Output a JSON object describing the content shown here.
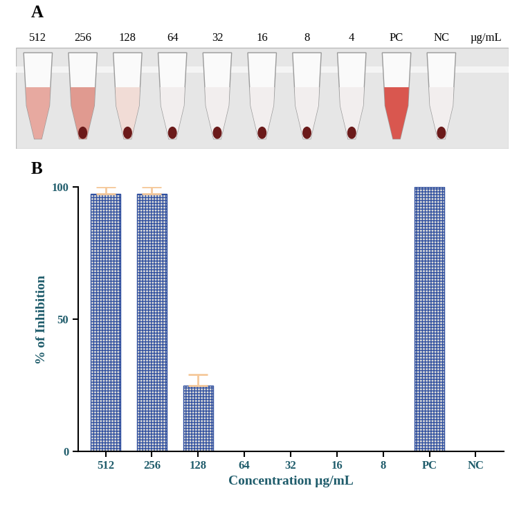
{
  "photo": {
    "panel_label": "A",
    "tube_labels": [
      "512",
      "256",
      "128",
      "64",
      "32",
      "16",
      "8",
      "4",
      "PC",
      "NC"
    ],
    "unit": "µg/mL"
  },
  "chart_data": {
    "type": "bar",
    "panel_label": "B",
    "x_label": "Concentration µg/mL",
    "y_label": "% of Inhibition",
    "categories": [
      "512",
      "256",
      "128",
      "64",
      "32",
      "16",
      "8",
      "PC",
      "NC"
    ],
    "values": [
      97.5,
      97.5,
      25,
      0,
      0,
      0,
      0,
      100,
      0
    ],
    "error": [
      2.5,
      2.5,
      4,
      0,
      0,
      0,
      0,
      0,
      0
    ],
    "color": "#d9d9d9",
    "ylim": [
      0,
      100
    ],
    "yticks": [
      0,
      50,
      100
    ],
    "grid": false
  }
}
